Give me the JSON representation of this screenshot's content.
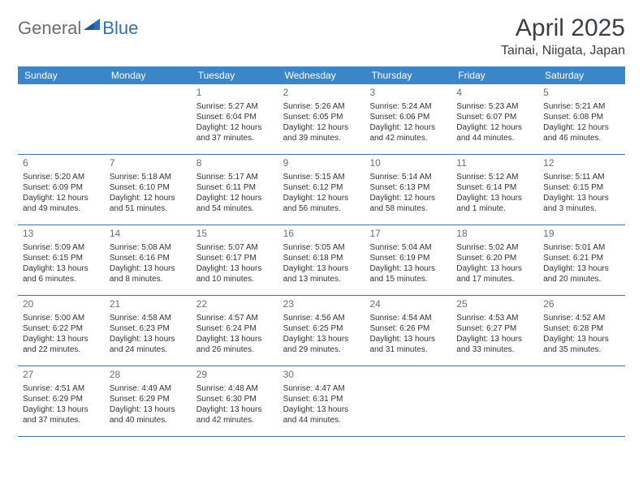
{
  "logo": {
    "text1": "General",
    "text2": "Blue"
  },
  "title": "April 2025",
  "location": "Tainai, Niigata, Japan",
  "colors": {
    "header_bg": "#3b86c8",
    "header_text": "#ffffff",
    "divider": "#3b6fa8",
    "logo_gray": "#6a6e73",
    "logo_blue": "#2f6fb5",
    "body_text": "#333333",
    "daynum": "#6a6e73"
  },
  "weekdays": [
    "Sunday",
    "Monday",
    "Tuesday",
    "Wednesday",
    "Thursday",
    "Friday",
    "Saturday"
  ],
  "weeks": [
    [
      null,
      null,
      {
        "n": "1",
        "sunrise": "5:27 AM",
        "sunset": "6:04 PM",
        "dl": "12 hours and 37 minutes."
      },
      {
        "n": "2",
        "sunrise": "5:26 AM",
        "sunset": "6:05 PM",
        "dl": "12 hours and 39 minutes."
      },
      {
        "n": "3",
        "sunrise": "5:24 AM",
        "sunset": "6:06 PM",
        "dl": "12 hours and 42 minutes."
      },
      {
        "n": "4",
        "sunrise": "5:23 AM",
        "sunset": "6:07 PM",
        "dl": "12 hours and 44 minutes."
      },
      {
        "n": "5",
        "sunrise": "5:21 AM",
        "sunset": "6:08 PM",
        "dl": "12 hours and 46 minutes."
      }
    ],
    [
      {
        "n": "6",
        "sunrise": "5:20 AM",
        "sunset": "6:09 PM",
        "dl": "12 hours and 49 minutes."
      },
      {
        "n": "7",
        "sunrise": "5:18 AM",
        "sunset": "6:10 PM",
        "dl": "12 hours and 51 minutes."
      },
      {
        "n": "8",
        "sunrise": "5:17 AM",
        "sunset": "6:11 PM",
        "dl": "12 hours and 54 minutes."
      },
      {
        "n": "9",
        "sunrise": "5:15 AM",
        "sunset": "6:12 PM",
        "dl": "12 hours and 56 minutes."
      },
      {
        "n": "10",
        "sunrise": "5:14 AM",
        "sunset": "6:13 PM",
        "dl": "12 hours and 58 minutes."
      },
      {
        "n": "11",
        "sunrise": "5:12 AM",
        "sunset": "6:14 PM",
        "dl": "13 hours and 1 minute."
      },
      {
        "n": "12",
        "sunrise": "5:11 AM",
        "sunset": "6:15 PM",
        "dl": "13 hours and 3 minutes."
      }
    ],
    [
      {
        "n": "13",
        "sunrise": "5:09 AM",
        "sunset": "6:15 PM",
        "dl": "13 hours and 6 minutes."
      },
      {
        "n": "14",
        "sunrise": "5:08 AM",
        "sunset": "6:16 PM",
        "dl": "13 hours and 8 minutes."
      },
      {
        "n": "15",
        "sunrise": "5:07 AM",
        "sunset": "6:17 PM",
        "dl": "13 hours and 10 minutes."
      },
      {
        "n": "16",
        "sunrise": "5:05 AM",
        "sunset": "6:18 PM",
        "dl": "13 hours and 13 minutes."
      },
      {
        "n": "17",
        "sunrise": "5:04 AM",
        "sunset": "6:19 PM",
        "dl": "13 hours and 15 minutes."
      },
      {
        "n": "18",
        "sunrise": "5:02 AM",
        "sunset": "6:20 PM",
        "dl": "13 hours and 17 minutes."
      },
      {
        "n": "19",
        "sunrise": "5:01 AM",
        "sunset": "6:21 PM",
        "dl": "13 hours and 20 minutes."
      }
    ],
    [
      {
        "n": "20",
        "sunrise": "5:00 AM",
        "sunset": "6:22 PM",
        "dl": "13 hours and 22 minutes."
      },
      {
        "n": "21",
        "sunrise": "4:58 AM",
        "sunset": "6:23 PM",
        "dl": "13 hours and 24 minutes."
      },
      {
        "n": "22",
        "sunrise": "4:57 AM",
        "sunset": "6:24 PM",
        "dl": "13 hours and 26 minutes."
      },
      {
        "n": "23",
        "sunrise": "4:56 AM",
        "sunset": "6:25 PM",
        "dl": "13 hours and 29 minutes."
      },
      {
        "n": "24",
        "sunrise": "4:54 AM",
        "sunset": "6:26 PM",
        "dl": "13 hours and 31 minutes."
      },
      {
        "n": "25",
        "sunrise": "4:53 AM",
        "sunset": "6:27 PM",
        "dl": "13 hours and 33 minutes."
      },
      {
        "n": "26",
        "sunrise": "4:52 AM",
        "sunset": "6:28 PM",
        "dl": "13 hours and 35 minutes."
      }
    ],
    [
      {
        "n": "27",
        "sunrise": "4:51 AM",
        "sunset": "6:29 PM",
        "dl": "13 hours and 37 minutes."
      },
      {
        "n": "28",
        "sunrise": "4:49 AM",
        "sunset": "6:29 PM",
        "dl": "13 hours and 40 minutes."
      },
      {
        "n": "29",
        "sunrise": "4:48 AM",
        "sunset": "6:30 PM",
        "dl": "13 hours and 42 minutes."
      },
      {
        "n": "30",
        "sunrise": "4:47 AM",
        "sunset": "6:31 PM",
        "dl": "13 hours and 44 minutes."
      },
      null,
      null,
      null
    ]
  ],
  "labels": {
    "sunrise_prefix": "Sunrise: ",
    "sunset_prefix": "Sunset: ",
    "daylight_prefix": "Daylight: "
  }
}
